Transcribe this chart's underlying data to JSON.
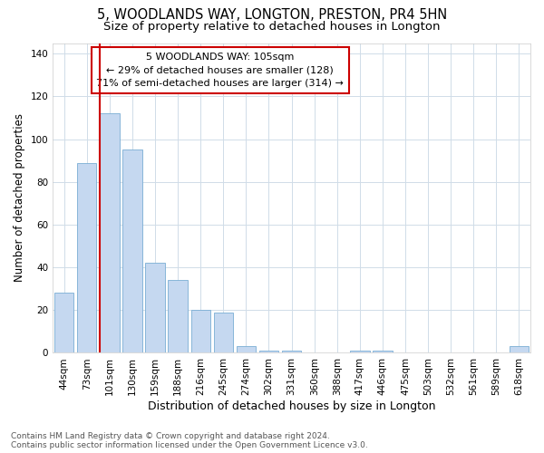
{
  "title": "5, WOODLANDS WAY, LONGTON, PRESTON, PR4 5HN",
  "subtitle": "Size of property relative to detached houses in Longton",
  "xlabel": "Distribution of detached houses by size in Longton",
  "ylabel": "Number of detached properties",
  "categories": [
    "44sqm",
    "73sqm",
    "101sqm",
    "130sqm",
    "159sqm",
    "188sqm",
    "216sqm",
    "245sqm",
    "274sqm",
    "302sqm",
    "331sqm",
    "360sqm",
    "388sqm",
    "417sqm",
    "446sqm",
    "475sqm",
    "503sqm",
    "532sqm",
    "561sqm",
    "589sqm",
    "618sqm"
  ],
  "values": [
    28,
    89,
    112,
    95,
    42,
    34,
    20,
    19,
    3,
    1,
    1,
    0,
    0,
    1,
    1,
    0,
    0,
    0,
    0,
    0,
    3
  ],
  "bar_color": "#c5d8f0",
  "bar_edge_color": "#7aadd4",
  "vline_color": "#cc0000",
  "vline_label": "5 WOODLANDS WAY: 105sqm",
  "annotation_line1": "← 29% of detached houses are smaller (128)",
  "annotation_line2": "71% of semi-detached houses are larger (314) →",
  "annotation_box_color": "#cc0000",
  "annotation_bg": "#ffffff",
  "ylim": [
    0,
    145
  ],
  "yticks": [
    0,
    20,
    40,
    60,
    80,
    100,
    120,
    140
  ],
  "title_fontsize": 10.5,
  "subtitle_fontsize": 9.5,
  "xlabel_fontsize": 9,
  "ylabel_fontsize": 8.5,
  "tick_fontsize": 7.5,
  "annotation_fontsize": 8,
  "footer_line1": "Contains HM Land Registry data © Crown copyright and database right 2024.",
  "footer_line2": "Contains public sector information licensed under the Open Government Licence v3.0.",
  "bg_color": "#ffffff",
  "plot_bg_color": "#ffffff"
}
